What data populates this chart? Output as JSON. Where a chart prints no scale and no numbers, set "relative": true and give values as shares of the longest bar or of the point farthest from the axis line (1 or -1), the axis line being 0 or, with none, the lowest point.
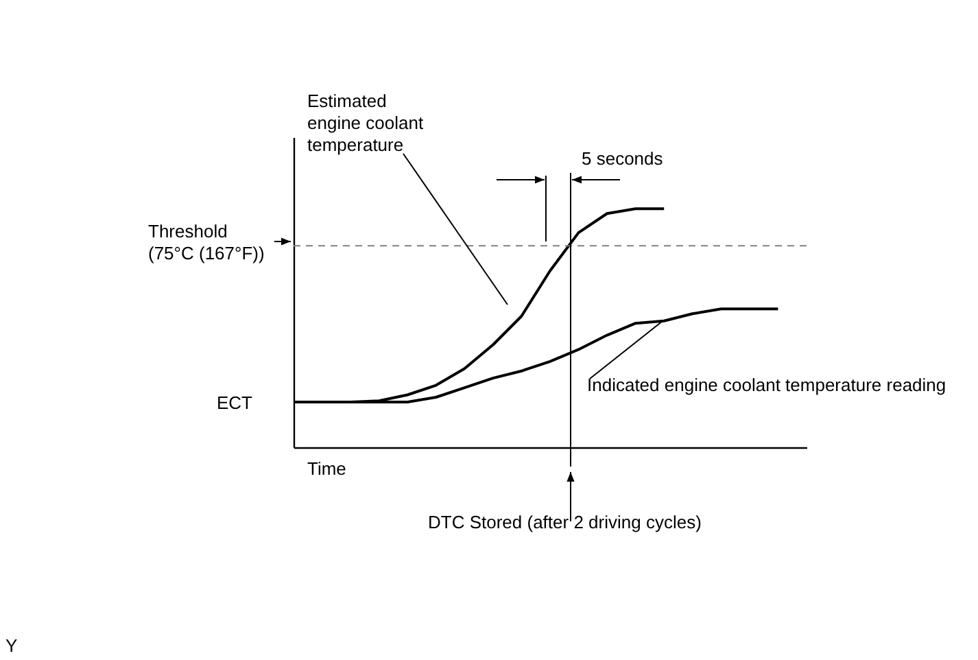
{
  "chart_data": {
    "type": "line",
    "relative": true,
    "xlabel": "Time",
    "grid": false,
    "line_style": "solid",
    "marker": "none",
    "categories": [
      null,
      null,
      null,
      null,
      null,
      null,
      null,
      null,
      null,
      null,
      null,
      null,
      null,
      null,
      null,
      null,
      null,
      null,
      null
    ],
    "series": [
      {
        "color": "#000000",
        "values": [
          0.19,
          0.19,
          0.19,
          0.195,
          0.22,
          0.26,
          0.33,
          0.43,
          0.55,
          0.74,
          0.9,
          0.98,
          1,
          1,
          null,
          null,
          null,
          null,
          null
        ]
      },
      {
        "color": "#000000",
        "values": [
          0.19,
          0.19,
          0.19,
          0.19,
          0.19,
          0.21,
          0.25,
          0.29,
          0.32,
          0.36,
          0.41,
          0.47,
          0.52,
          0.53,
          0.56,
          0.58,
          0.58,
          0.58,
          null
        ]
      }
    ],
    "ref_lines": [
      {
        "axis": "y",
        "value": 0.845,
        "label": "Threshold (75°C (167°F))",
        "color": "#808080",
        "line_style": "dashed"
      }
    ],
    "annotations": [
      "Estimated engine coolant temperature",
      "5 seconds",
      "ECT",
      "Indicated engine coolant temperature reading",
      "DTC Stored (after 2 driving cycles)",
      "Y"
    ]
  }
}
